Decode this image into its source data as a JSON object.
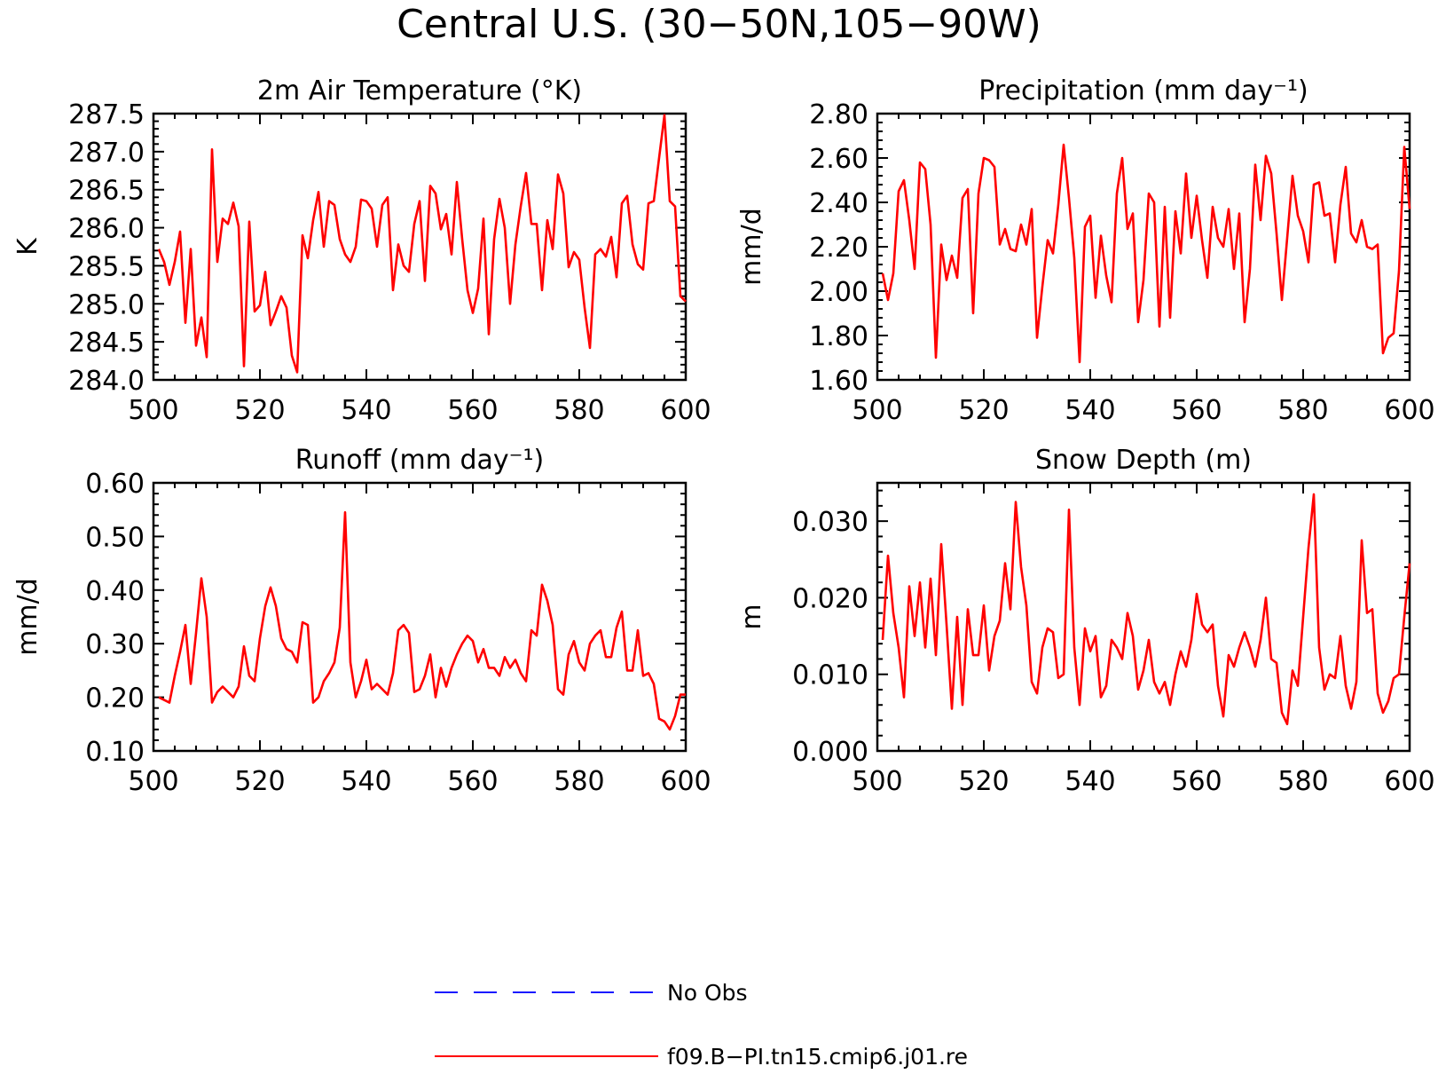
{
  "title": "Central U.S. (30−50N,105−90W)",
  "colors": {
    "model": "#ff0000",
    "obs": "#1a1aff",
    "axis": "#000000"
  },
  "legend": [
    {
      "label": "No Obs",
      "style": "dashed",
      "color": "#1a1aff"
    },
    {
      "label": "f09.B−PI.tn15.cmip6.j01.re",
      "style": "solid",
      "color": "#ff0000"
    }
  ],
  "chart_data": [
    {
      "type": "line",
      "title": "2m Air Temperature (°K)",
      "ylabel": "K",
      "xlim": [
        500,
        600
      ],
      "ylim": [
        284.0,
        287.5
      ],
      "xticks": [
        500,
        520,
        540,
        560,
        580,
        600
      ],
      "yticks": [
        284.0,
        284.5,
        285.0,
        285.5,
        286.0,
        286.5,
        287.0,
        287.5
      ],
      "ytick_labels": [
        "284.0",
        "284.5",
        "285.0",
        "285.5",
        "286.0",
        "286.5",
        "287.0",
        "287.5"
      ],
      "x_start": 501,
      "series": [
        {
          "name": "f09.B−PI.tn15.cmip6.j01.re",
          "values": [
            285.72,
            285.55,
            285.25,
            285.55,
            285.95,
            284.75,
            285.72,
            284.45,
            284.82,
            284.3,
            287.03,
            285.55,
            286.12,
            286.05,
            286.33,
            286.02,
            284.18,
            286.08,
            284.9,
            284.98,
            285.42,
            284.72,
            284.9,
            285.1,
            284.95,
            284.32,
            284.1,
            285.9,
            285.6,
            286.1,
            286.47,
            285.75,
            286.35,
            286.3,
            285.85,
            285.65,
            285.55,
            285.75,
            286.37,
            286.35,
            286.25,
            285.75,
            286.3,
            286.4,
            285.18,
            285.78,
            285.5,
            285.42,
            286.05,
            286.35,
            285.3,
            286.55,
            286.45,
            285.98,
            286.18,
            285.65,
            286.6,
            285.85,
            285.18,
            284.88,
            285.2,
            286.12,
            284.6,
            285.85,
            286.38,
            286.0,
            285.0,
            285.78,
            286.28,
            286.72,
            286.05,
            286.05,
            285.18,
            286.1,
            285.72,
            286.7,
            286.45,
            285.48,
            285.68,
            285.58,
            284.95,
            284.42,
            285.65,
            285.72,
            285.62,
            285.88,
            285.35,
            286.32,
            286.42,
            285.78,
            285.52,
            285.45,
            286.32,
            286.35,
            286.92,
            287.48,
            286.35,
            286.28,
            285.1,
            285.03
          ]
        }
      ]
    },
    {
      "type": "line",
      "title": "Precipitation (mm day⁻¹)",
      "ylabel": "mm/d",
      "xlim": [
        500,
        600
      ],
      "ylim": [
        1.6,
        2.8
      ],
      "xticks": [
        500,
        520,
        540,
        560,
        580,
        600
      ],
      "yticks": [
        1.6,
        1.8,
        2.0,
        2.2,
        2.4,
        2.6,
        2.8
      ],
      "ytick_labels": [
        "1.60",
        "1.80",
        "2.00",
        "2.20",
        "2.40",
        "2.60",
        "2.80"
      ],
      "x_start": 501,
      "series": [
        {
          "name": "f09.B−PI.tn15.cmip6.j01.re",
          "values": [
            2.08,
            1.96,
            2.08,
            2.45,
            2.5,
            2.32,
            2.1,
            2.58,
            2.55,
            2.3,
            1.7,
            2.21,
            2.05,
            2.16,
            2.06,
            2.42,
            2.46,
            1.9,
            2.44,
            2.6,
            2.59,
            2.56,
            2.21,
            2.28,
            2.19,
            2.18,
            2.3,
            2.21,
            2.37,
            1.79,
            2.02,
            2.23,
            2.17,
            2.39,
            2.66,
            2.42,
            2.15,
            1.68,
            2.29,
            2.34,
            1.97,
            2.25,
            2.07,
            1.95,
            2.44,
            2.6,
            2.28,
            2.35,
            1.86,
            2.05,
            2.44,
            2.4,
            1.84,
            2.38,
            1.88,
            2.36,
            2.17,
            2.53,
            2.24,
            2.43,
            2.23,
            2.06,
            2.38,
            2.24,
            2.2,
            2.37,
            2.1,
            2.35,
            1.86,
            2.1,
            2.57,
            2.32,
            2.61,
            2.53,
            2.26,
            1.96,
            2.24,
            2.52,
            2.34,
            2.27,
            2.13,
            2.48,
            2.49,
            2.34,
            2.35,
            2.13,
            2.39,
            2.56,
            2.26,
            2.22,
            2.32,
            2.2,
            2.19,
            2.21,
            1.72,
            1.79,
            1.81,
            2.09,
            2.65,
            2.37
          ]
        }
      ]
    },
    {
      "type": "line",
      "title": "Runoff (mm day⁻¹)",
      "ylabel": "mm/d",
      "xlim": [
        500,
        600
      ],
      "ylim": [
        0.1,
        0.6
      ],
      "xticks": [
        500,
        520,
        540,
        560,
        580,
        600
      ],
      "yticks": [
        0.1,
        0.2,
        0.3,
        0.4,
        0.5,
        0.6
      ],
      "ytick_labels": [
        "0.10",
        "0.20",
        "0.30",
        "0.40",
        "0.50",
        "0.60"
      ],
      "x_start": 501,
      "series": [
        {
          "name": "f09.B−PI.tn15.cmip6.j01.re",
          "values": [
            0.2,
            0.195,
            0.19,
            0.24,
            0.285,
            0.335,
            0.225,
            0.32,
            0.422,
            0.35,
            0.19,
            0.21,
            0.22,
            0.21,
            0.2,
            0.22,
            0.295,
            0.24,
            0.23,
            0.31,
            0.37,
            0.405,
            0.37,
            0.31,
            0.29,
            0.285,
            0.265,
            0.34,
            0.335,
            0.19,
            0.2,
            0.23,
            0.245,
            0.265,
            0.33,
            0.545,
            0.265,
            0.2,
            0.23,
            0.27,
            0.215,
            0.225,
            0.215,
            0.205,
            0.245,
            0.325,
            0.335,
            0.32,
            0.21,
            0.215,
            0.24,
            0.28,
            0.2,
            0.255,
            0.22,
            0.255,
            0.28,
            0.3,
            0.315,
            0.305,
            0.265,
            0.29,
            0.255,
            0.255,
            0.24,
            0.275,
            0.255,
            0.27,
            0.245,
            0.23,
            0.325,
            0.315,
            0.41,
            0.38,
            0.335,
            0.215,
            0.205,
            0.28,
            0.305,
            0.265,
            0.25,
            0.3,
            0.315,
            0.325,
            0.275,
            0.275,
            0.33,
            0.36,
            0.25,
            0.25,
            0.325,
            0.24,
            0.245,
            0.225,
            0.16,
            0.155,
            0.14,
            0.165,
            0.205,
            0.205
          ]
        }
      ]
    },
    {
      "type": "line",
      "title": "Snow Depth (m)",
      "ylabel": "m",
      "xlim": [
        500,
        600
      ],
      "ylim": [
        0.0,
        0.035
      ],
      "xticks": [
        500,
        520,
        540,
        560,
        580,
        600
      ],
      "yticks": [
        0.0,
        0.01,
        0.02,
        0.03
      ],
      "ytick_labels": [
        "0.000",
        "0.010",
        "0.020",
        "0.030"
      ],
      "x_start": 501,
      "series": [
        {
          "name": "f09.B−PI.tn15.cmip6.j01.re",
          "values": [
            0.0145,
            0.0255,
            0.018,
            0.0135,
            0.007,
            0.0215,
            0.015,
            0.022,
            0.0135,
            0.0225,
            0.0125,
            0.027,
            0.0165,
            0.0055,
            0.0175,
            0.006,
            0.0185,
            0.0125,
            0.0125,
            0.019,
            0.0105,
            0.015,
            0.017,
            0.0245,
            0.0185,
            0.0325,
            0.024,
            0.019,
            0.009,
            0.0075,
            0.0135,
            0.016,
            0.0155,
            0.0095,
            0.01,
            0.0315,
            0.0135,
            0.006,
            0.016,
            0.013,
            0.015,
            0.007,
            0.0085,
            0.0145,
            0.0135,
            0.012,
            0.018,
            0.015,
            0.008,
            0.0105,
            0.0145,
            0.009,
            0.0075,
            0.009,
            0.006,
            0.01,
            0.013,
            0.011,
            0.0145,
            0.0205,
            0.0165,
            0.0155,
            0.0165,
            0.0085,
            0.0045,
            0.0125,
            0.011,
            0.0135,
            0.0155,
            0.0135,
            0.011,
            0.0145,
            0.02,
            0.012,
            0.0115,
            0.005,
            0.0035,
            0.0105,
            0.0085,
            0.0175,
            0.0265,
            0.0335,
            0.0135,
            0.008,
            0.01,
            0.0095,
            0.015,
            0.0085,
            0.0055,
            0.009,
            0.0275,
            0.018,
            0.0185,
            0.0075,
            0.005,
            0.0065,
            0.0095,
            0.01,
            0.0175,
            0.0245
          ]
        }
      ]
    }
  ]
}
